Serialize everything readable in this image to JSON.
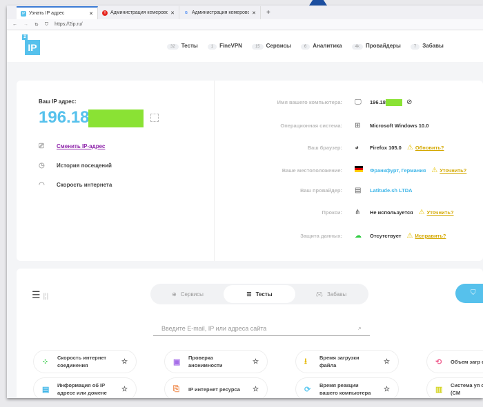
{
  "browser": {
    "tabs": [
      {
        "label": "Узнать IP адрес",
        "favicon": "IP",
        "color": "#56c1ec",
        "active": true
      },
      {
        "label": "Администрация кемерово",
        "favicon": "Y",
        "color": "#e52620"
      },
      {
        "label": "Администрация кемерово",
        "favicon": "G",
        "color": "#4285f4"
      }
    ],
    "new_tab": "+",
    "url": "https://2ip.ru/"
  },
  "logo": {
    "small": "2",
    "big": "IP"
  },
  "nav": [
    {
      "count": "32",
      "label": "Тесты"
    },
    {
      "count": "1",
      "label": "FineVPN"
    },
    {
      "count": "15",
      "label": "Сервисы"
    },
    {
      "count": "6",
      "label": "Аналитика"
    },
    {
      "count": "4k",
      "label": "Провайдеры"
    },
    {
      "count": "7",
      "label": "Забавы"
    }
  ],
  "ipcard": {
    "label": "Ваш IP адрес:",
    "ip": "196.18",
    "actions": [
      {
        "label": "Сменить IP-адрес",
        "icon": "change-ip-icon"
      },
      {
        "label": "История посещений",
        "icon": "history-icon"
      },
      {
        "label": "Скорость интернета",
        "icon": "speed-icon"
      }
    ]
  },
  "info": [
    {
      "label": "Имя вашего компьютера:",
      "icon": "monitor-icon",
      "value": "196.18"
    },
    {
      "label": "Операционная система:",
      "icon": "windows-icon",
      "value": "Microsoft Windows 10.0"
    },
    {
      "label": "Ваш браузер:",
      "icon": "firefox-icon",
      "value": "Firefox 105.0",
      "link": "Обновить?"
    },
    {
      "label": "Ваше местоположение:",
      "icon": "flag-germany-icon",
      "value": "Франкфурт, Германия",
      "link": "Уточнить?"
    },
    {
      "label": "Ваш провайдер:",
      "icon": "server-icon",
      "value": "Latitude.sh LTDA"
    },
    {
      "label": "Прокси:",
      "icon": "network-icon",
      "value": "Не используется",
      "link": "Уточнить?"
    },
    {
      "label": "Защита данных:",
      "icon": "cloud-lock-icon",
      "value": "Отсутствует",
      "link": "Исправить?"
    }
  ],
  "tabs": [
    {
      "label": "Сервисы"
    },
    {
      "label": "Тесты",
      "active": true
    },
    {
      "label": "Забавы"
    }
  ],
  "search": {
    "placeholder": "Введите E-mail, IP или адреса сайта"
  },
  "services": [
    {
      "label": "Скорость интернет соединения",
      "color": "#2ecc40"
    },
    {
      "label": "Проверка анонимности",
      "color": "#a66ee8"
    },
    {
      "label": "Время загрузки файла",
      "color": "#e6b800"
    },
    {
      "label": "Объем загр файла",
      "color": "#f06292"
    },
    {
      "label": "Информация об IP адресе или домене",
      "color": "#3fb6e8"
    },
    {
      "label": "IP интернет ресурса",
      "color": "#f08a4b"
    },
    {
      "label": "Время реакции вашего компьютера",
      "color": "#5bc8f0"
    },
    {
      "label": "Система уп сайтом (CM",
      "color": "#d6d62a"
    }
  ]
}
